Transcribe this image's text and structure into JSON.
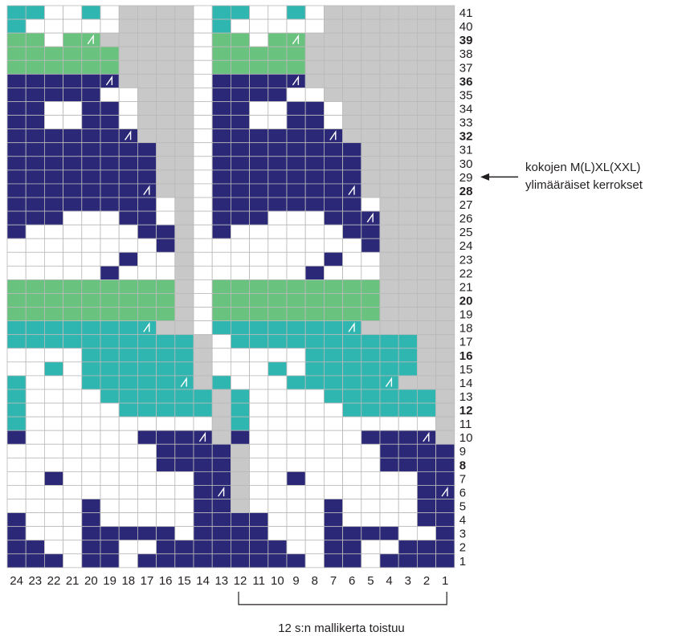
{
  "colors": {
    "navy": "#2b2878",
    "teal": "#2fb6b0",
    "green": "#6ac27f",
    "white": "#ffffff",
    "gray": "#c8c8c8",
    "grid": "#b9b9b9",
    "text": "#231f20"
  },
  "chart": {
    "rows": 41,
    "cols": 24,
    "row_labels": [
      "1",
      "2",
      "3",
      "4",
      "5",
      "6",
      "7",
      "8",
      "9",
      "10",
      "11",
      "12",
      "13",
      "14",
      "15",
      "16",
      "17",
      "18",
      "19",
      "20",
      "21",
      "22",
      "23",
      "24",
      "25",
      "26",
      "27",
      "28",
      "29",
      "30",
      "31",
      "32",
      "33",
      "34",
      "35",
      "36",
      "37",
      "38",
      "39",
      "40",
      "41"
    ],
    "bold_rows": [
      "8",
      "12",
      "16",
      "20",
      "28",
      "32",
      "36",
      "39"
    ],
    "col_labels": [
      "24",
      "23",
      "22",
      "21",
      "20",
      "19",
      "18",
      "17",
      "16",
      "15",
      "14",
      "13",
      "12",
      "11",
      "10",
      "9",
      "8",
      "7",
      "6",
      "5",
      "4",
      "3",
      "2",
      "1"
    ],
    "legend_key": "N = navy, T = teal, G = green, W = white, . = gray (no stitch), D = decrease mark",
    "grid_rows_top_to_bottom": [
      "TTWWTW....WTTWWTW.......",
      "TWWWWW....WTWWWWW.......",
      "GGWGD.....WGGWGD........",
      "GGGGGG....WGGGGG........",
      "GGGGGG....WGGGGG........",
      "NNNNND....WNNNND........",
      "NNNNNWW...WNNNNWW.......",
      "NNWWNNW...WNNWWNNW......",
      "NNWWNNW...WNNWWNNW......",
      "NNNNNND...WNNNNNND......",
      "NNNNNNNN..WNNNNNNNN.....",
      "NNNNNNNN..WNNNNNNNN.....",
      "NNNNNNNN..WNNNNNNNN.....",
      "NNNNNNND..WNNNNNNND.....",
      "NNNNNNNNW.WNNNNNNNNW....",
      "NNNWWWNNW.WNNNWWWNND....",
      "NWWWWWWNN.WNWWWWWWNN....",
      "WWWWWWWWN.WWWWWWWWWN....",
      "WWWWWWNWW.WWWWWWWNWW....",
      "WWWWWNWWW.WWWWWWNWWW....",
      "GGGGGGGGG.WGGGGGGGGG....",
      "GGGGGGGGG.WGGGGGGGGG....",
      "GGGGGGGGG.WGGGGGGGGG....",
      "TTTTTTTD..WTTTTTTTD.....",
      "TTTTTTTTTT.WTTTTTTTTTT..",
      "WWWWTTTTTT.WWWWWTTTTTT..",
      "WWTWTTTTTT.WWWTWTTTTTT..",
      "TWWWTTTTTD.TWWWTTTTTD...",
      "TWWWWTTTTTT.TWWWWTTTTTT.",
      "TWWWWWTTTTT.TWWWWWTTTTT.",
      "TWWWWWWWWWW.TWWWWWWWWWW.",
      "NWWWWWWNNND.NWWWWWWNNND.",
      "WWWWWWWWNNNN.WWWWWWWNNNN",
      "WWWWWWWWNNNN.WWWWWWWNNNN",
      "WWNWWWWWWWNN.WWNWWWWWWNN",
      "WWWWWWWWWWND.WWWWWWWWWND",
      "WWWWNWWWWWNN.WWWWNWWWWNN",
      "NWWWNWWWWWNNNNWWWNWWWWNN",
      "NWWWNNNNNWNNNNWWWNNNNWWN",
      "NNWWNNWWNNNNNNNWWNNWWNNN",
      "NNNWNNWNNNNNNNNNWNNWNNNN"
    ]
  },
  "annotation": {
    "text_line1": "kokojen M(L)XL(XXL)",
    "text_line2": "ylimääräiset kerrokset",
    "row": "29"
  },
  "repeat": {
    "caption": "12 s:n mallikerta toistuu",
    "from_col": "12",
    "to_col": "1"
  }
}
